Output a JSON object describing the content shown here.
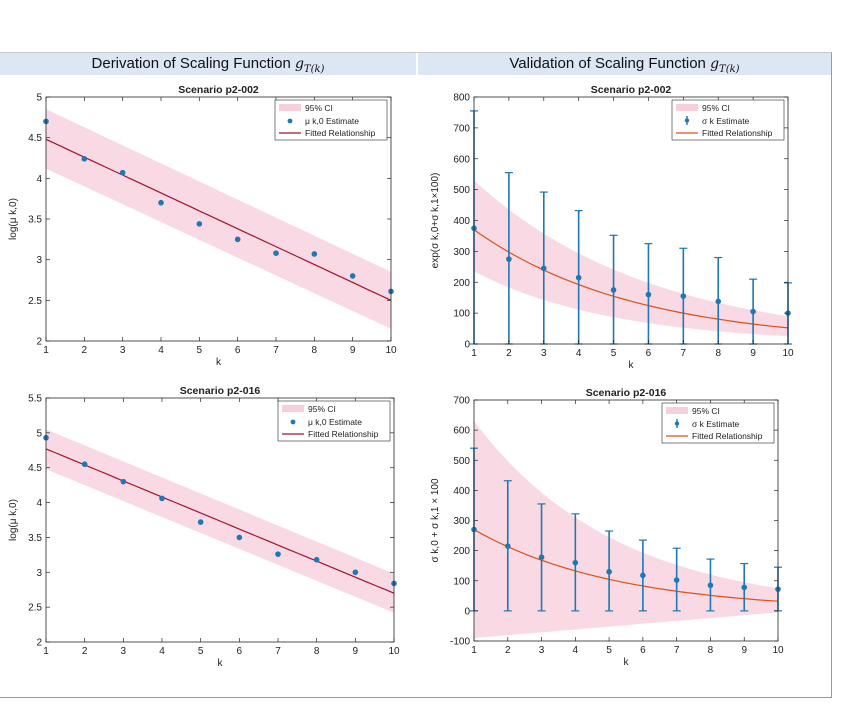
{
  "headers": {
    "left": {
      "text": "Derivation of Scaling Function ",
      "math": "g",
      "sub": "T(k)"
    },
    "right": {
      "text": "Validation of Scaling Function ",
      "math": "g",
      "sub": "T(k)"
    }
  },
  "colors": {
    "ci_band": "#f9d9e3",
    "ci_legend": "#f7cfdc",
    "marker": "#1f77b4",
    "fit_red": "#a2142f",
    "fit_orange": "#d95319",
    "header_band": "#dde6f4"
  },
  "chart_data": [
    {
      "id": "tl",
      "type": "scatter",
      "title": "Scenario p2-002",
      "xlabel": "k",
      "ylabel": "log(μ k,0)",
      "xlim": [
        1,
        10
      ],
      "ylim": [
        2,
        5
      ],
      "xticks": [
        "1",
        "2",
        "3",
        "4",
        "5",
        "6",
        "7",
        "8",
        "9",
        "10"
      ],
      "yticks": [
        "2",
        "2.5",
        "3",
        "3.5",
        "4",
        "4.5",
        "5"
      ],
      "legend": {
        "position": "top-right",
        "entries": [
          "95% CI",
          "μ k,0 Estimate",
          "Fitted Relationship"
        ]
      },
      "x": [
        1,
        2,
        3,
        4,
        5,
        6,
        7,
        8,
        9,
        10
      ],
      "estimate": [
        4.7,
        4.24,
        4.07,
        3.7,
        3.44,
        3.25,
        3.08,
        3.07,
        2.8,
        2.61
      ],
      "fit": {
        "start": 4.48,
        "end": 2.5
      },
      "ci_upper": {
        "start": 4.85,
        "end": 2.85
      },
      "ci_lower": {
        "start": 4.12,
        "end": 2.15
      },
      "fit_color": "#a2142f",
      "fit_curve": "linear"
    },
    {
      "id": "bl",
      "type": "scatter",
      "title": "Scenario p2-016",
      "xlabel": "k",
      "ylabel": "log(μ k,0)",
      "xlim": [
        1,
        10
      ],
      "ylim": [
        2,
        5.5
      ],
      "xticks": [
        "1",
        "2",
        "3",
        "4",
        "5",
        "6",
        "7",
        "8",
        "9",
        "10"
      ],
      "yticks": [
        "2",
        "2.5",
        "3",
        "3.5",
        "4",
        "4.5",
        "5",
        "5.5"
      ],
      "legend": {
        "position": "top-right",
        "entries": [
          "95% CI",
          "μ k,0 Estimate",
          "Fitted Relationship"
        ]
      },
      "x": [
        1,
        2,
        3,
        4,
        5,
        6,
        7,
        8,
        9,
        10
      ],
      "estimate": [
        4.93,
        4.55,
        4.3,
        4.06,
        3.72,
        3.5,
        3.26,
        3.18,
        3.0,
        2.84
      ],
      "fit": {
        "start": 4.77,
        "end": 2.7
      },
      "ci_upper": {
        "start": 5.05,
        "end": 2.98
      },
      "ci_lower": {
        "start": 4.48,
        "end": 2.42
      },
      "fit_color": "#a2142f",
      "fit_curve": "linear"
    },
    {
      "id": "tr",
      "type": "scatter",
      "title": "Scenario p2-002",
      "xlabel": "k",
      "ylabel": "exp(σ k,0+σ k,1×100)",
      "xlim": [
        1,
        10
      ],
      "ylim": [
        0,
        800
      ],
      "xticks": [
        "1",
        "2",
        "3",
        "4",
        "5",
        "6",
        "7",
        "8",
        "9",
        "10"
      ],
      "yticks": [
        "0",
        "100",
        "200",
        "300",
        "400",
        "500",
        "600",
        "700",
        "800"
      ],
      "legend": {
        "position": "top-right",
        "entries": [
          "95% CI",
          "σ k Estimate",
          "Fitted Relationship"
        ]
      },
      "x": [
        1,
        2,
        3,
        4,
        5,
        6,
        7,
        8,
        9,
        10
      ],
      "estimate": [
        375,
        275,
        245,
        215,
        175,
        160,
        155,
        138,
        105,
        100
      ],
      "err_upper": [
        755,
        555,
        492,
        432,
        352,
        325,
        310,
        280,
        210,
        198
      ],
      "err_lower": [
        0,
        0,
        0,
        0,
        0,
        0,
        0,
        0,
        0,
        0
      ],
      "fit": {
        "start": 370,
        "end": 52
      },
      "ci_upper": {
        "start": 530,
        "end": 90
      },
      "ci_lower": {
        "start": 235,
        "end": 25
      },
      "fit_color": "#d95319",
      "fit_curve": "exp"
    },
    {
      "id": "br",
      "type": "scatter",
      "title": "Scenario p2-016",
      "xlabel": "k",
      "ylabel": "σ k,0 + σ k,1 × 100",
      "xlim": [
        1,
        10
      ],
      "ylim": [
        -100,
        700
      ],
      "xticks": [
        "1",
        "2",
        "3",
        "4",
        "5",
        "6",
        "7",
        "8",
        "9",
        "10"
      ],
      "yticks": [
        "-100",
        "0",
        "100",
        "200",
        "300",
        "400",
        "500",
        "600",
        "700"
      ],
      "legend": {
        "position": "top-right",
        "entries": [
          "95% CI",
          "σ k Estimate",
          "Fitted Relationship"
        ]
      },
      "x": [
        1,
        2,
        3,
        4,
        5,
        6,
        7,
        8,
        9,
        10
      ],
      "estimate": [
        270,
        215,
        178,
        160,
        130,
        118,
        102,
        85,
        78,
        72
      ],
      "err_upper": [
        540,
        432,
        355,
        322,
        265,
        235,
        208,
        172,
        157,
        145
      ],
      "err_lower": [
        0,
        0,
        0,
        0,
        0,
        0,
        0,
        0,
        0,
        0
      ],
      "fit": {
        "start": 270,
        "end": 32
      },
      "ci_upper": {
        "start": 630,
        "end": 75
      },
      "ci_lower": {
        "start": -90,
        "end": -5
      },
      "fit_color": "#d95319",
      "fit_curve": "exp"
    }
  ]
}
